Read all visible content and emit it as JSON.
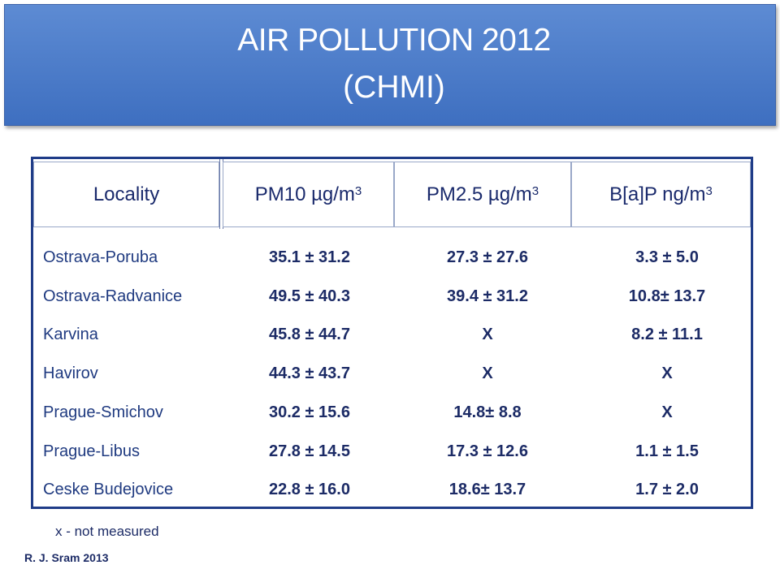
{
  "header": {
    "title": "AIR POLLUTION 2012",
    "subtitle": "(CHMI)"
  },
  "table": {
    "columns": [
      {
        "text": "Locality"
      },
      {
        "text": "PM10 µg/m",
        "sup": "3"
      },
      {
        "text": "PM2.5 µg/m",
        "sup": "3"
      },
      {
        "text": "B[a]P ng/m",
        "sup": "3"
      }
    ],
    "rows": [
      [
        "Ostrava-Poruba",
        "35.1 ± 31.2",
        "27.3 ± 27.6",
        "3.3 ± 5.0"
      ],
      [
        "Ostrava-Radvanice",
        "49.5 ± 40.3",
        "39.4 ± 31.2",
        "10.8± 13.7"
      ],
      [
        "Karvina",
        "45.8 ± 44.7",
        "X",
        "8.2 ± 11.1"
      ],
      [
        "Havirov",
        "44.3 ± 43.7",
        "X",
        "X"
      ],
      [
        "Prague-Smichov",
        "30.2 ± 15.6",
        "14.8± 8.8",
        "X"
      ],
      [
        "Prague-Libus",
        "27.8 ± 14.5",
        "17.3 ± 12.6",
        "1.1 ± 1.5"
      ],
      [
        "Ceske Budejovice",
        "22.8 ± 16.0",
        "18.6± 13.7",
        "1.7 ± 2.0"
      ]
    ]
  },
  "footnote": "x - not measured",
  "author": "R. J. Sram 2013"
}
